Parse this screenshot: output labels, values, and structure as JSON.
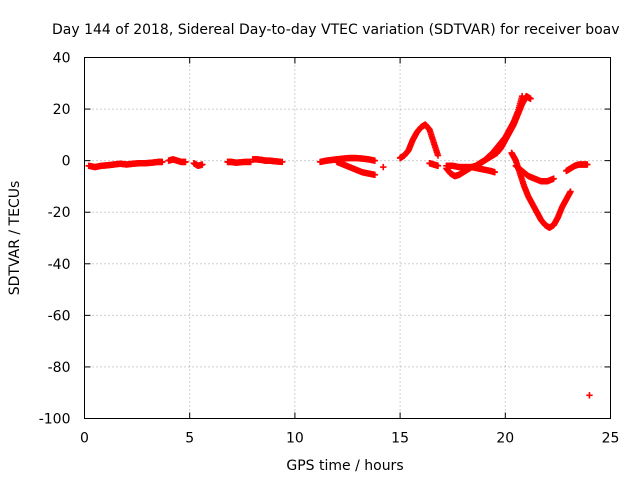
{
  "chart_data": {
    "type": "scatter",
    "title": "Day 144 of 2018, Sidereal Day-to-day VTEC variation (SDTVAR) for receiver boav",
    "xlabel": "GPS time / hours",
    "ylabel": "SDTVAR / TECUs",
    "xlim": [
      0,
      25
    ],
    "ylim": [
      -100,
      40
    ],
    "xticks": [
      0,
      5,
      10,
      15,
      20,
      25
    ],
    "yticks": [
      -100,
      -80,
      -60,
      -40,
      -20,
      0,
      20,
      40
    ],
    "grid": true,
    "marker": "plus",
    "color": "#ff0000",
    "segments": [
      {
        "x": [
          0.2,
          0.5,
          0.8,
          1.1,
          1.4,
          1.7,
          2.0,
          2.3,
          2.6,
          2.9,
          3.2,
          3.5,
          3.7
        ],
        "y": [
          -2,
          -2.5,
          -2,
          -1.8,
          -1.5,
          -1.2,
          -1.5,
          -1.2,
          -1,
          -1,
          -0.8,
          -0.5,
          -0.5
        ]
      },
      {
        "x": [
          4.0,
          4.2,
          4.4,
          4.6,
          4.8
        ],
        "y": [
          0,
          0.5,
          0,
          -0.5,
          -0.5
        ]
      },
      {
        "x": [
          5.2,
          5.4,
          5.6
        ],
        "y": [
          -1,
          -2,
          -1.5
        ]
      },
      {
        "x": [
          6.8,
          7.0,
          7.2,
          7.6,
          7.9
        ],
        "y": [
          -0.5,
          -0.5,
          -0.8,
          -0.5,
          -0.5
        ]
      },
      {
        "x": [
          8.0,
          8.2,
          8.4,
          8.6,
          8.8,
          9.0,
          9.4
        ],
        "y": [
          0.5,
          0.5,
          0.3,
          0,
          0,
          -0.2,
          -0.5
        ]
      },
      {
        "x": [
          11.2,
          11.5,
          11.8,
          12.0,
          12.3,
          12.6,
          12.9,
          13.2,
          13.5,
          13.8
        ],
        "y": [
          -0.5,
          0,
          0.3,
          0.5,
          0.8,
          1,
          1,
          0.8,
          0.5,
          0
        ]
      },
      {
        "x": [
          12.0,
          12.3,
          12.6,
          12.9,
          13.2,
          13.5,
          13.8
        ],
        "y": [
          -0.5,
          -1.5,
          -2.5,
          -3.5,
          -4.5,
          -5,
          -5.5
        ]
      },
      {
        "x": [
          14.2
        ],
        "y": [
          -2.5
        ]
      },
      {
        "x": [
          15.0,
          15.2,
          15.4,
          15.6,
          15.8,
          16.0,
          16.2,
          16.4,
          16.6,
          16.8
        ],
        "y": [
          1,
          2,
          4,
          8,
          11,
          13,
          14,
          12,
          7,
          2
        ]
      },
      {
        "x": [
          16.4,
          16.6,
          16.8
        ],
        "y": [
          -1,
          -1.5,
          -2
        ]
      },
      {
        "x": [
          17.2,
          17.4,
          17.6,
          17.8,
          18.0,
          18.2,
          18.4,
          18.6,
          18.8,
          19.0,
          19.2,
          19.4,
          19.6
        ],
        "y": [
          -3,
          -5,
          -6,
          -5.5,
          -4.5,
          -3.5,
          -2.5,
          -2,
          -1,
          0,
          1,
          2,
          3
        ]
      },
      {
        "x": [
          17.2,
          17.5,
          17.8,
          18.1,
          18.4,
          18.7,
          19.0,
          19.3,
          19.5
        ],
        "y": [
          -2,
          -2,
          -2.5,
          -2.5,
          -2.5,
          -3,
          -3.5,
          -4,
          -4.5
        ]
      },
      {
        "x": [
          18.8,
          19.0,
          19.2,
          19.4,
          19.6,
          19.8,
          20.0,
          20.2,
          20.4,
          20.6,
          20.8
        ],
        "y": [
          -1,
          0,
          1.5,
          3,
          5,
          7,
          9,
          12,
          15,
          19,
          25
        ]
      },
      {
        "x": [
          19.6,
          19.8,
          20.0,
          20.2,
          20.4,
          20.6,
          20.8,
          21.0,
          21.2
        ],
        "y": [
          3,
          5,
          8,
          11,
          14,
          18,
          22,
          25,
          24
        ]
      },
      {
        "x": [
          20.3,
          20.5,
          20.7,
          20.9,
          21.1,
          21.3,
          21.5,
          21.7,
          21.9,
          22.1,
          22.3,
          22.5,
          22.7,
          22.9,
          23.1
        ],
        "y": [
          3,
          0,
          -5,
          -10,
          -14,
          -17,
          -20,
          -23,
          -25,
          -26,
          -25,
          -22,
          -18,
          -15,
          -12
        ]
      },
      {
        "x": [
          20.5,
          20.8,
          21.1,
          21.4,
          21.7,
          22.0,
          22.3
        ],
        "y": [
          -2,
          -4,
          -6,
          -7,
          -8,
          -8,
          -7
        ]
      },
      {
        "x": [
          22.9,
          23.1,
          23.3,
          23.5,
          23.7,
          23.9
        ],
        "y": [
          -4,
          -3,
          -2,
          -1.5,
          -1.5,
          -1.5
        ]
      },
      {
        "x": [
          24.0
        ],
        "y": [
          -91
        ]
      }
    ]
  }
}
